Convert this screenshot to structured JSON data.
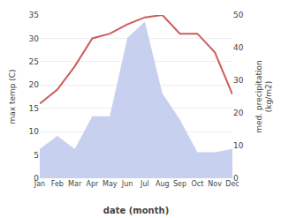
{
  "chart_data": {
    "type": "line",
    "categories": [
      "Jan",
      "Feb",
      "Mar",
      "Apr",
      "May",
      "Jun",
      "Jul",
      "Aug",
      "Sep",
      "Oct",
      "Nov",
      "Dec"
    ],
    "series": [
      {
        "type": "area",
        "axis": "y2",
        "color": "#c8d0f0",
        "values": [
          9,
          13,
          9,
          19,
          19,
          43,
          48,
          26,
          18,
          8,
          8,
          9
        ]
      },
      {
        "type": "line",
        "axis": "y",
        "color": "#cd5c5c",
        "values": [
          16,
          19,
          24,
          30,
          31,
          33,
          34.5,
          35,
          31,
          31,
          27,
          18
        ]
      }
    ],
    "xlabel": "date (month)",
    "ylabel": "max temp (C)",
    "y2label": "med. precipitation\n(kg/m2)",
    "ylim": [
      0,
      35
    ],
    "yticks": [
      0,
      5,
      10,
      15,
      20,
      25,
      30,
      35
    ],
    "y2lim": [
      0,
      50
    ],
    "y2ticks": [
      0,
      10,
      20,
      30,
      40,
      50
    ],
    "grid": true
  }
}
